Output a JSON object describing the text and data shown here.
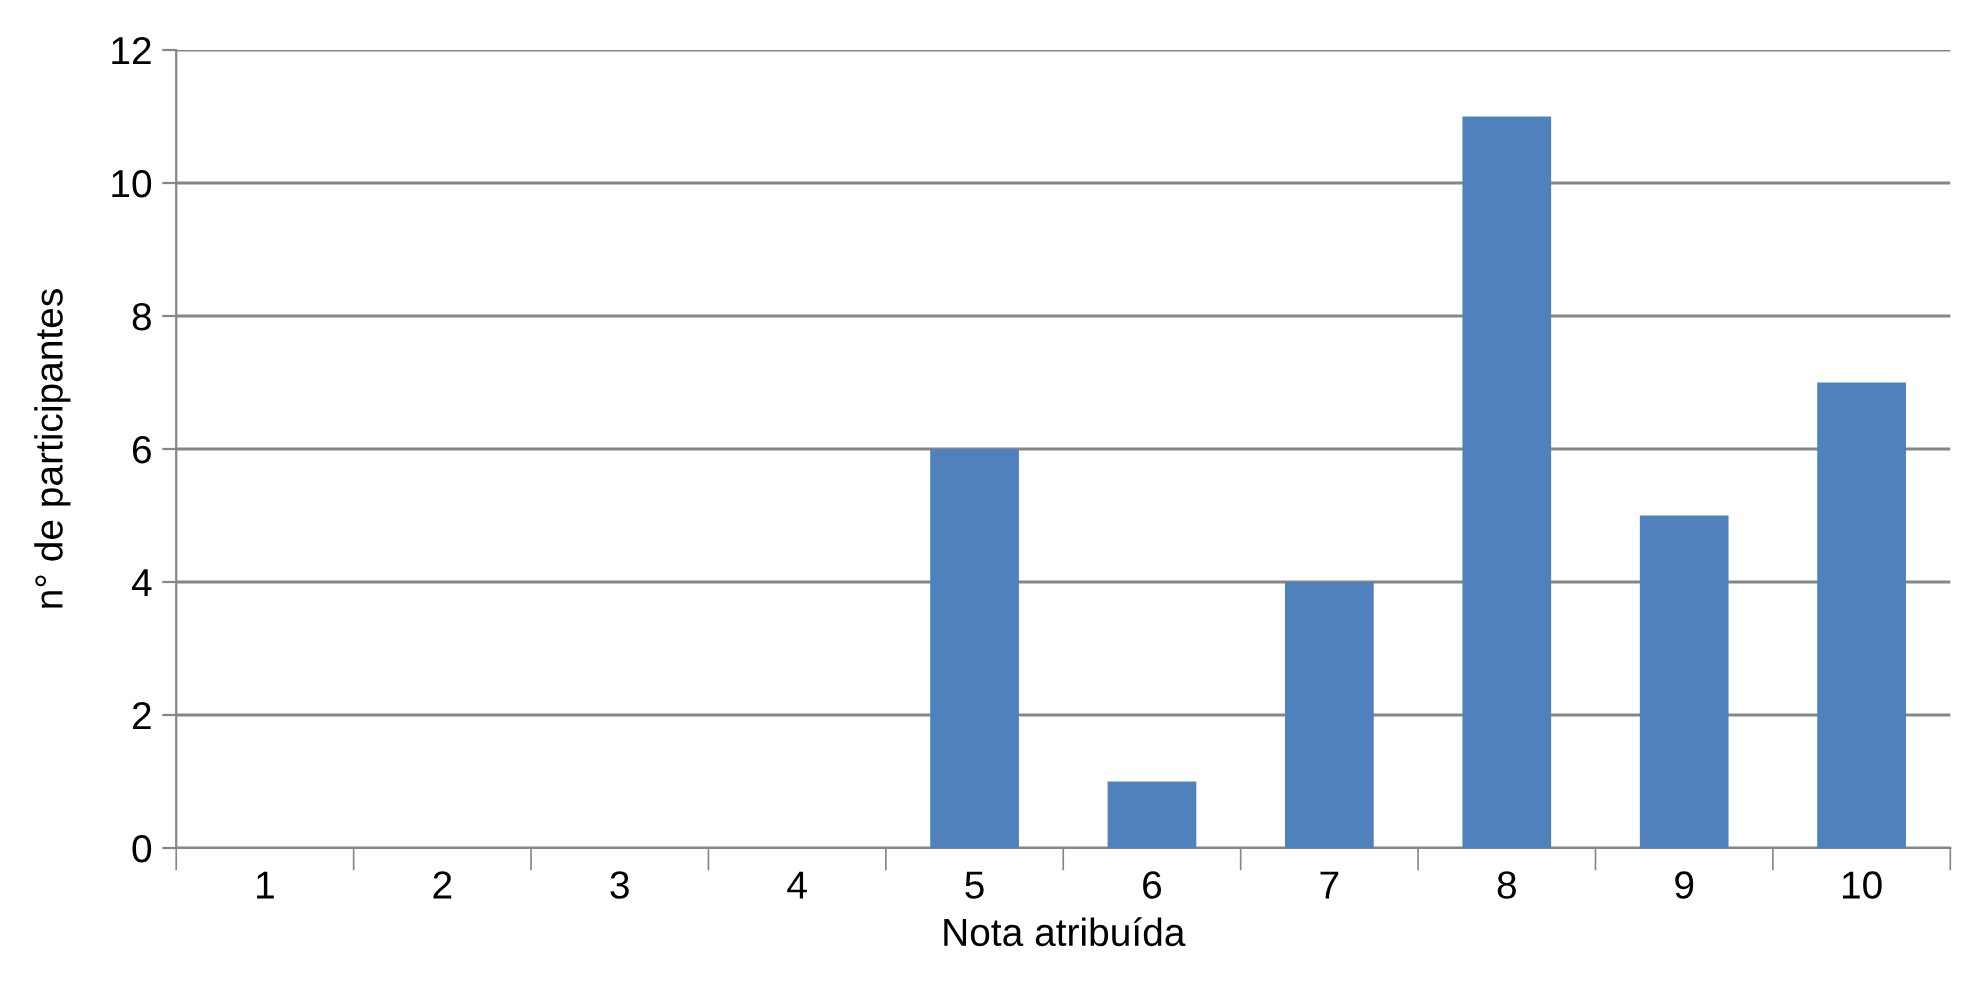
{
  "chart_data": {
    "type": "bar",
    "xlabel": "Nota atribuída",
    "ylabel": "n° de participantes",
    "categories": [
      "1",
      "2",
      "3",
      "4",
      "5",
      "6",
      "7",
      "8",
      "9",
      "10"
    ],
    "values": [
      0,
      0,
      0,
      0,
      6,
      1,
      4,
      11,
      5,
      7
    ],
    "color": "#4f81bd",
    "ylim": [
      0,
      12
    ],
    "yticks": [
      0,
      2,
      4,
      6,
      8,
      10,
      12
    ],
    "grid": "y"
  }
}
